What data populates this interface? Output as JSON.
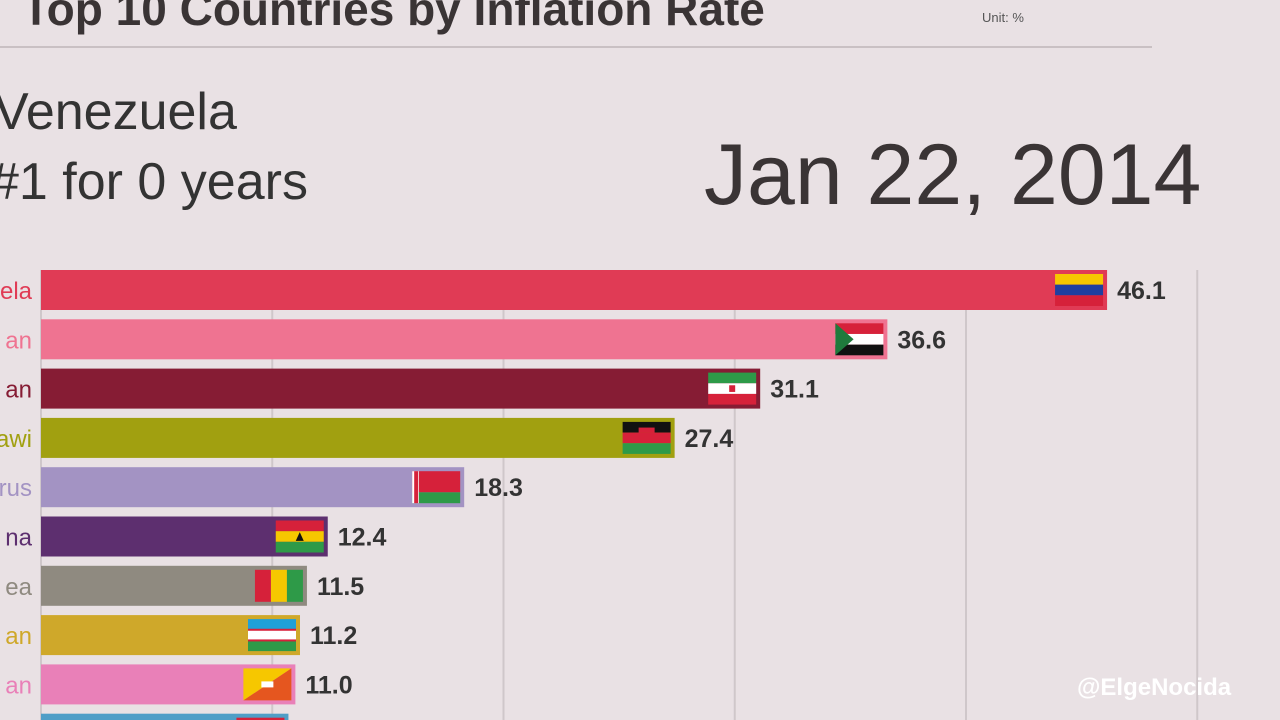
{
  "header": {
    "title": "Top 10 Countries by Inflation Rate",
    "unit": "Unit: %",
    "leader_name": "Venezuela",
    "leader_streak": "#1 for 0 years",
    "date": "Jan 22, 2014",
    "watermark": "@ElgeNocida"
  },
  "chart_data": {
    "type": "bar",
    "orientation": "horizontal",
    "title": "Top 10 Countries by Inflation Rate",
    "unit": "Unit: %",
    "xlim": [
      0,
      50
    ],
    "grid": true,
    "categories": [
      "Venezuela",
      "Sudan",
      "Iran",
      "Malawi",
      "Belarus",
      "Ghana",
      "Guinea",
      "Uzbekistan",
      "Bhutan",
      ""
    ],
    "category_labels_visible": [
      "ela",
      "an",
      "an",
      "awi",
      "rus",
      "na",
      "ea",
      "an",
      "an",
      ""
    ],
    "values": [
      46.1,
      36.6,
      31.1,
      27.4,
      18.3,
      12.4,
      11.5,
      11.2,
      11.0,
      10.7
    ],
    "value_labels": [
      "46.1",
      "36.6",
      "31.1",
      "27.4",
      "18.3",
      "12.4",
      "11.5",
      "11.2",
      "11.0",
      ""
    ],
    "bar_colors": [
      "#e03b55",
      "#ef7391",
      "#861c34",
      "#a1a010",
      "#a393c3",
      "#5d2f6f",
      "#8f8a80",
      "#cfa82a",
      "#e980b8",
      "#4f9ec7"
    ],
    "label_colors": [
      "#e03b55",
      "#ef7391",
      "#861c34",
      "#a1a010",
      "#a393c3",
      "#5d2f6f",
      "#8f8a80",
      "#cfa82a",
      "#e980b8",
      "#4f9ec7"
    ],
    "flags": [
      "venezuela-flag-icon",
      "sudan-flag-icon",
      "iran-flag-icon",
      "malawi-flag-icon",
      "belarus-flag-icon",
      "ghana-flag-icon",
      "guinea-flag-icon",
      "uzbekistan-flag-icon",
      "bhutan-flag-icon",
      "flag-icon"
    ]
  }
}
